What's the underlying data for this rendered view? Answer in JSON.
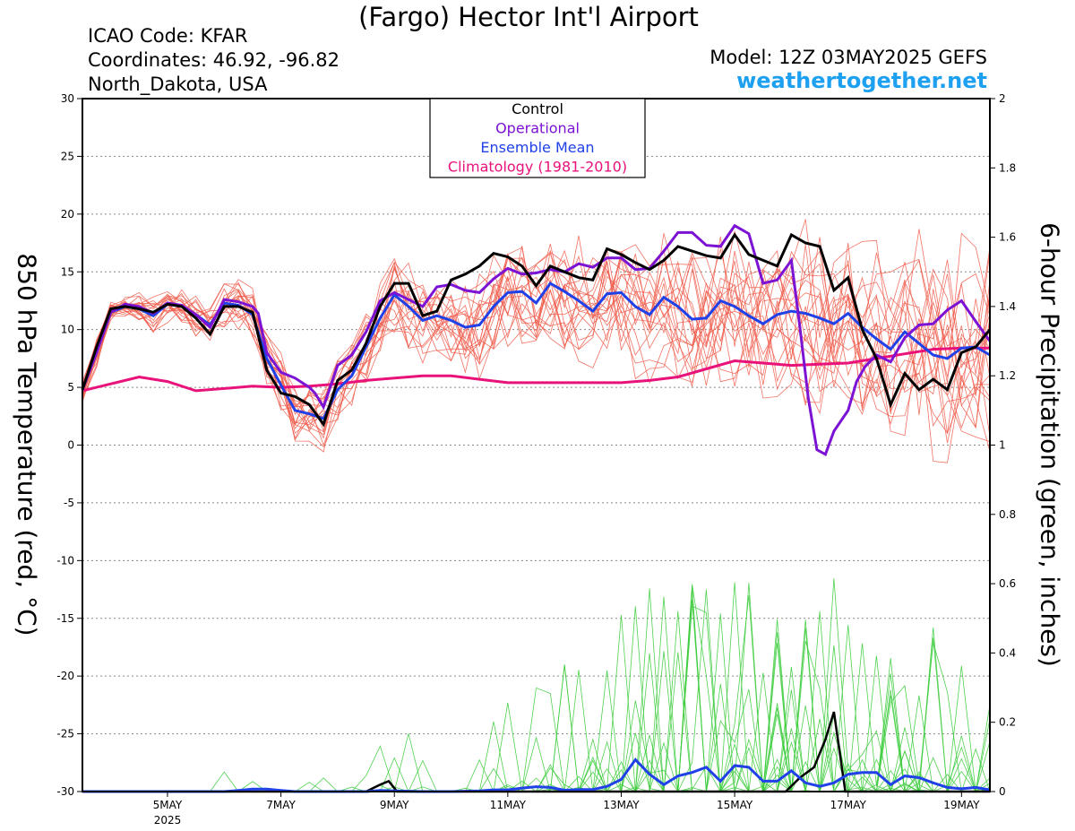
{
  "header": {
    "title": "(Fargo) Hector Int'l Airport",
    "icao": "ICAO Code: KFAR",
    "coords": "Coordinates: 46.92, -96.82",
    "location": "North_Dakota, USA",
    "model": "Model: 12Z 03MAY2025 GEFS",
    "site": "weathertogether.net"
  },
  "colors": {
    "members": "#f05a4a",
    "precip": "#3ccc3c",
    "control": "#000000",
    "operational": "#7b12d4",
    "mean": "#2040e8",
    "climatology": "#e8127a",
    "site": "#1ea0f0"
  },
  "chart_data": {
    "type": "line",
    "ylabel_left": "850 hPa Temperature (red, °C)",
    "ylabel_right": "6-hour Precipitation (green, inches)",
    "x_unit": "days after 00Z 03MAY2025",
    "xlim": [
      0.5,
      16.5
    ],
    "ylim_left": [
      -30,
      30
    ],
    "ylim_right": [
      0,
      2
    ],
    "left_ticks": [
      30,
      25,
      20,
      15,
      10,
      5,
      0,
      -5,
      -10,
      -15,
      -20,
      -25,
      -30
    ],
    "right_ticks": [
      2,
      1.8,
      1.6,
      1.4,
      1.2,
      1,
      0.8,
      0.6,
      0.4,
      0.2,
      0
    ],
    "x_ticks": [
      {
        "x": 2,
        "label": "5MAY",
        "sub": "2025"
      },
      {
        "x": 4,
        "label": "7MAY",
        "sub": ""
      },
      {
        "x": 6,
        "label": "9MAY",
        "sub": ""
      },
      {
        "x": 8,
        "label": "11MAY",
        "sub": ""
      },
      {
        "x": 10,
        "label": "13MAY",
        "sub": ""
      },
      {
        "x": 12,
        "label": "15MAY",
        "sub": ""
      },
      {
        "x": 14,
        "label": "17MAY",
        "sub": ""
      },
      {
        "x": 16,
        "label": "19MAY",
        "sub": ""
      }
    ],
    "grid": "dotted horizontal",
    "legend": {
      "position": "top-center",
      "entries": [
        {
          "label": "Control",
          "color": "#000000"
        },
        {
          "label": "Operational",
          "color": "#7b12d4"
        },
        {
          "label": "Ensemble Mean",
          "color": "#2040e8"
        },
        {
          "label": "Climatology (1981-2010)",
          "color": "#e8127a"
        }
      ]
    },
    "temperature": {
      "control": [
        [
          0.5,
          4.8
        ],
        [
          0.75,
          8.5
        ],
        [
          1,
          11.8
        ],
        [
          1.25,
          12
        ],
        [
          1.5,
          11.8
        ],
        [
          1.75,
          11.5
        ],
        [
          2,
          12.2
        ],
        [
          2.25,
          12
        ],
        [
          2.5,
          11
        ],
        [
          2.75,
          9.6
        ],
        [
          3,
          12
        ],
        [
          3.25,
          12
        ],
        [
          3.5,
          11.5
        ],
        [
          3.75,
          6.5
        ],
        [
          4,
          4.5
        ],
        [
          4.25,
          4.2
        ],
        [
          4.5,
          3.5
        ],
        [
          4.75,
          1.8
        ],
        [
          5,
          5.6
        ],
        [
          5.25,
          6.5
        ],
        [
          5.5,
          8.8
        ],
        [
          5.75,
          12
        ],
        [
          6,
          14
        ],
        [
          6.25,
          14
        ],
        [
          6.5,
          11.2
        ],
        [
          6.75,
          11.6
        ],
        [
          7,
          14.3
        ],
        [
          7.25,
          14.8
        ],
        [
          7.5,
          15.5
        ],
        [
          7.75,
          16.6
        ],
        [
          8,
          16.3
        ],
        [
          8.25,
          15.5
        ],
        [
          8.5,
          13.8
        ],
        [
          8.75,
          15.5
        ],
        [
          9,
          15
        ],
        [
          9.25,
          14.5
        ],
        [
          9.5,
          14.3
        ],
        [
          9.75,
          17
        ],
        [
          10,
          16.5
        ],
        [
          10.25,
          15.8
        ],
        [
          10.5,
          15.2
        ],
        [
          10.75,
          16
        ],
        [
          11,
          17.2
        ],
        [
          11.25,
          16.8
        ],
        [
          11.5,
          16.4
        ],
        [
          11.75,
          16.2
        ],
        [
          12,
          18.2
        ],
        [
          12.25,
          16.5
        ],
        [
          12.5,
          16
        ],
        [
          12.75,
          15.5
        ],
        [
          13,
          18.2
        ],
        [
          13.25,
          17.5
        ],
        [
          13.5,
          17.2
        ],
        [
          13.75,
          13.4
        ],
        [
          14,
          14.5
        ],
        [
          14.25,
          10
        ],
        [
          14.5,
          7.5
        ],
        [
          14.75,
          3.5
        ],
        [
          15,
          6.2
        ],
        [
          15.25,
          4.8
        ],
        [
          15.5,
          5.7
        ],
        [
          15.75,
          4.8
        ],
        [
          16,
          8
        ],
        [
          16.25,
          8.5
        ],
        [
          16.5,
          10
        ]
      ],
      "operational": [
        [
          0.5,
          4.8
        ],
        [
          0.75,
          8
        ],
        [
          1,
          11.5
        ],
        [
          1.25,
          12.2
        ],
        [
          1.5,
          12
        ],
        [
          1.75,
          11.4
        ],
        [
          2,
          12.3
        ],
        [
          2.25,
          12.1
        ],
        [
          2.5,
          11.3
        ],
        [
          2.75,
          10.2
        ],
        [
          3,
          12.6
        ],
        [
          3.25,
          12.4
        ],
        [
          3.5,
          12
        ],
        [
          3.6,
          11.4
        ],
        [
          3.75,
          8
        ],
        [
          4,
          6.3
        ],
        [
          4.25,
          5.8
        ],
        [
          4.5,
          5
        ],
        [
          4.6,
          4.5
        ],
        [
          4.75,
          3.3
        ],
        [
          5,
          6.9
        ],
        [
          5.25,
          7.8
        ],
        [
          5.5,
          9.8
        ],
        [
          5.75,
          12.5
        ],
        [
          6,
          13.2
        ],
        [
          6.25,
          12.6
        ],
        [
          6.5,
          12
        ],
        [
          6.75,
          13.7
        ],
        [
          7,
          13.9
        ],
        [
          7.25,
          13.4
        ],
        [
          7.5,
          13.2
        ],
        [
          7.75,
          14.4
        ],
        [
          8,
          15.3
        ],
        [
          8.25,
          14.8
        ],
        [
          8.5,
          14.9
        ],
        [
          8.75,
          15.2
        ],
        [
          9,
          15
        ],
        [
          9.25,
          15.7
        ],
        [
          9.5,
          15.4
        ],
        [
          9.75,
          16.2
        ],
        [
          10,
          16.2
        ],
        [
          10.25,
          15.2
        ],
        [
          10.5,
          15.3
        ],
        [
          10.75,
          16.8
        ],
        [
          11,
          18.4
        ],
        [
          11.25,
          18.4
        ],
        [
          11.5,
          17.3
        ],
        [
          11.75,
          17.2
        ],
        [
          12,
          19
        ],
        [
          12.25,
          18.3
        ],
        [
          12.5,
          14
        ],
        [
          12.75,
          14.3
        ],
        [
          13,
          16
        ],
        [
          13.15,
          10.2
        ],
        [
          13.3,
          4
        ],
        [
          13.45,
          -0.4
        ],
        [
          13.6,
          -0.8
        ],
        [
          13.75,
          1.2
        ],
        [
          14,
          3
        ],
        [
          14.15,
          5.5
        ],
        [
          14.3,
          6.8
        ],
        [
          14.5,
          7.8
        ],
        [
          14.75,
          7.2
        ],
        [
          15,
          9.3
        ],
        [
          15.25,
          10.4
        ],
        [
          15.5,
          10.5
        ],
        [
          15.75,
          11.7
        ],
        [
          16,
          12.5
        ],
        [
          16.25,
          10.7
        ],
        [
          16.5,
          9
        ]
      ],
      "mean": [
        [
          0.5,
          4.8
        ],
        [
          0.75,
          8
        ],
        [
          1,
          11.5
        ],
        [
          1.25,
          12
        ],
        [
          1.5,
          11.8
        ],
        [
          1.75,
          11.2
        ],
        [
          2,
          12.2
        ],
        [
          2.25,
          12
        ],
        [
          2.5,
          11.3
        ],
        [
          2.75,
          10.4
        ],
        [
          3,
          12.3
        ],
        [
          3.25,
          12.1
        ],
        [
          3.5,
          11.3
        ],
        [
          3.75,
          7.5
        ],
        [
          4,
          5.2
        ],
        [
          4.25,
          3
        ],
        [
          4.5,
          2.7
        ],
        [
          4.75,
          2.3
        ],
        [
          5,
          4.8
        ],
        [
          5.25,
          6
        ],
        [
          5.5,
          8.5
        ],
        [
          5.75,
          11
        ],
        [
          6,
          13
        ],
        [
          6.25,
          12
        ],
        [
          6.5,
          10.8
        ],
        [
          6.75,
          11.2
        ],
        [
          7,
          10.8
        ],
        [
          7.25,
          10.2
        ],
        [
          7.5,
          10.4
        ],
        [
          7.75,
          12
        ],
        [
          8,
          13.2
        ],
        [
          8.25,
          13.3
        ],
        [
          8.5,
          12.3
        ],
        [
          8.75,
          14
        ],
        [
          9,
          13.3
        ],
        [
          9.25,
          12.5
        ],
        [
          9.5,
          11.6
        ],
        [
          9.75,
          13.1
        ],
        [
          10,
          13.2
        ],
        [
          10.25,
          12
        ],
        [
          10.5,
          11.3
        ],
        [
          10.75,
          12.8
        ],
        [
          11,
          12
        ],
        [
          11.25,
          10.9
        ],
        [
          11.5,
          11
        ],
        [
          11.75,
          12.5
        ],
        [
          12,
          12
        ],
        [
          12.25,
          11.2
        ],
        [
          12.5,
          10.5
        ],
        [
          12.75,
          11.3
        ],
        [
          13,
          11.6
        ],
        [
          13.25,
          11.4
        ],
        [
          13.5,
          11
        ],
        [
          13.75,
          10.5
        ],
        [
          14,
          11.4
        ],
        [
          14.25,
          10.2
        ],
        [
          14.5,
          9.2
        ],
        [
          14.75,
          8.3
        ],
        [
          15,
          9.8
        ],
        [
          15.25,
          8.8
        ],
        [
          15.5,
          7.8
        ],
        [
          15.75,
          7.5
        ],
        [
          16,
          8.4
        ],
        [
          16.25,
          8.5
        ],
        [
          16.5,
          7.8
        ]
      ],
      "climatology": [
        [
          0.5,
          4.7
        ],
        [
          1,
          5.3
        ],
        [
          1.5,
          5.9
        ],
        [
          2,
          5.5
        ],
        [
          2.5,
          4.7
        ],
        [
          3,
          4.9
        ],
        [
          3.5,
          5.1
        ],
        [
          4,
          5.0
        ],
        [
          4.5,
          5.1
        ],
        [
          5,
          5.3
        ],
        [
          5.5,
          5.6
        ],
        [
          6,
          5.8
        ],
        [
          6.5,
          6.0
        ],
        [
          7,
          6.0
        ],
        [
          7.5,
          5.7
        ],
        [
          8,
          5.4
        ],
        [
          8.5,
          5.4
        ],
        [
          9,
          5.4
        ],
        [
          9.5,
          5.4
        ],
        [
          10,
          5.4
        ],
        [
          10.5,
          5.6
        ],
        [
          11,
          5.9
        ],
        [
          11.5,
          6.6
        ],
        [
          12,
          7.3
        ],
        [
          12.5,
          7.1
        ],
        [
          13,
          6.9
        ],
        [
          13.5,
          7.0
        ],
        [
          14,
          7.1
        ],
        [
          14.5,
          7.5
        ],
        [
          15,
          7.9
        ],
        [
          15.5,
          8.3
        ],
        [
          16,
          8.4
        ],
        [
          16.5,
          8.4
        ]
      ]
    },
    "precipitation": {
      "control": [
        [
          0.5,
          0
        ],
        [
          5.5,
          0
        ],
        [
          5.75,
          0.02
        ],
        [
          5.9,
          0.03
        ],
        [
          6.05,
          0
        ],
        [
          12.9,
          0
        ],
        [
          13.15,
          0.04
        ],
        [
          13.4,
          0.07
        ],
        [
          13.6,
          0.15
        ],
        [
          13.75,
          0.23
        ],
        [
          13.95,
          0
        ],
        [
          16.5,
          0
        ]
      ],
      "mean": [
        [
          0.5,
          0
        ],
        [
          3,
          0
        ],
        [
          3.25,
          0.003
        ],
        [
          3.5,
          0.007
        ],
        [
          3.75,
          0.007
        ],
        [
          4,
          0.003
        ],
        [
          4.25,
          0
        ],
        [
          5.5,
          0
        ],
        [
          5.75,
          0.003
        ],
        [
          6,
          0.002
        ],
        [
          6.5,
          0
        ],
        [
          7,
          0
        ],
        [
          7.5,
          0.002
        ],
        [
          7.75,
          0.005
        ],
        [
          8,
          0.005
        ],
        [
          8.25,
          0.01
        ],
        [
          8.5,
          0.014
        ],
        [
          8.75,
          0.012
        ],
        [
          9,
          0.004
        ],
        [
          9.25,
          0.006
        ],
        [
          9.5,
          0.006
        ],
        [
          9.75,
          0.015
        ],
        [
          10,
          0.035
        ],
        [
          10.25,
          0.092
        ],
        [
          10.5,
          0.05
        ],
        [
          10.75,
          0.02
        ],
        [
          11,
          0.045
        ],
        [
          11.25,
          0.055
        ],
        [
          11.5,
          0.07
        ],
        [
          11.75,
          0.03
        ],
        [
          12,
          0.075
        ],
        [
          12.25,
          0.07
        ],
        [
          12.5,
          0.03
        ],
        [
          12.75,
          0.03
        ],
        [
          13,
          0.06
        ],
        [
          13.25,
          0.025
        ],
        [
          13.5,
          0.015
        ],
        [
          13.75,
          0.025
        ],
        [
          14,
          0.05
        ],
        [
          14.25,
          0.055
        ],
        [
          14.5,
          0.055
        ],
        [
          14.75,
          0.02
        ],
        [
          15,
          0.045
        ],
        [
          15.25,
          0.04
        ],
        [
          15.5,
          0.025
        ],
        [
          15.75,
          0.012
        ],
        [
          16,
          0.008
        ],
        [
          16.25,
          0.012
        ],
        [
          16.5,
          0.005
        ]
      ]
    }
  }
}
